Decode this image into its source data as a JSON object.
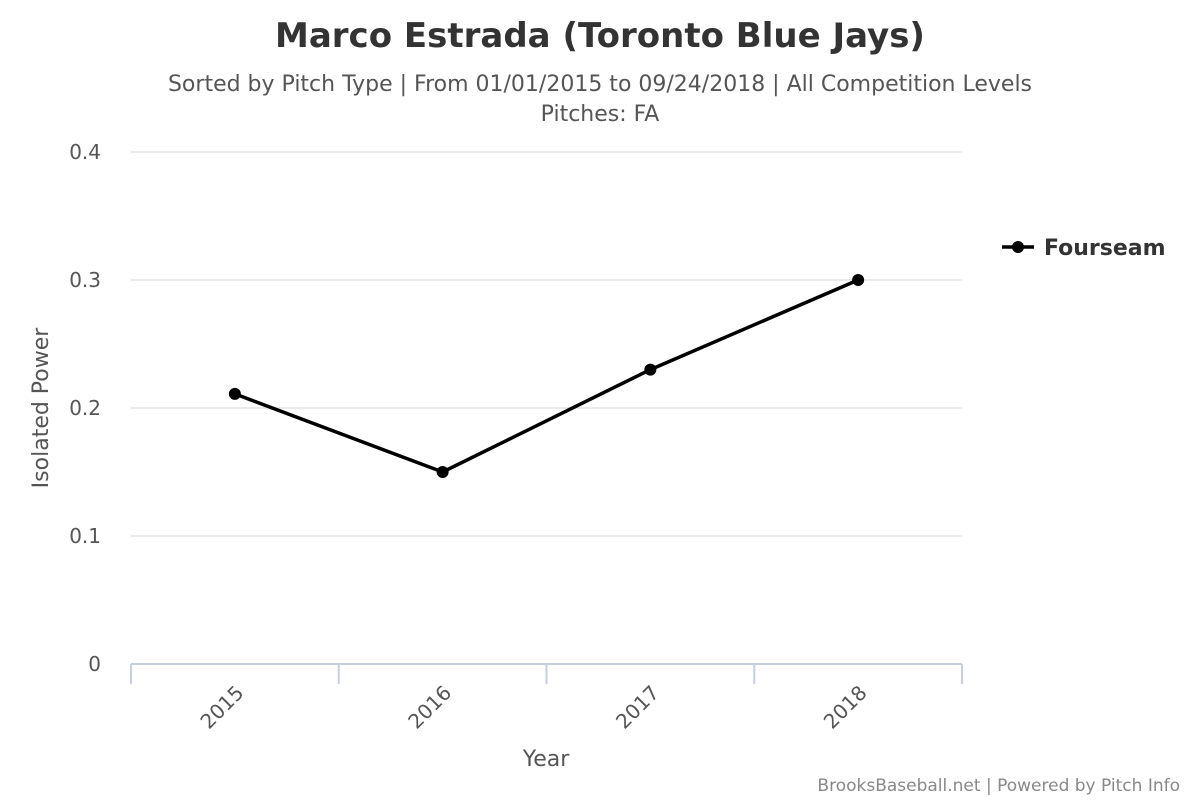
{
  "chart_data": {
    "type": "line",
    "title": "Marco Estrada (Toronto Blue Jays)",
    "subtitle_line1": "Sorted by Pitch Type | From 01/01/2015 to 09/24/2018 | All Competition Levels",
    "subtitle_line2": "Pitches: FA",
    "xlabel": "Year",
    "ylabel": "Isolated Power",
    "categories": [
      "2015",
      "2016",
      "2017",
      "2018"
    ],
    "y_ticks": [
      "0",
      "0.1",
      "0.2",
      "0.3",
      "0.4"
    ],
    "ylim": [
      0,
      0.4
    ],
    "grid": true,
    "legend_position": "right",
    "series": [
      {
        "name": "Fourseam",
        "color": "#000000",
        "values": [
          0.211,
          0.15,
          0.23,
          0.3
        ]
      }
    ],
    "credits": "BrooksBaseball.net | Powered by Pitch Info"
  }
}
